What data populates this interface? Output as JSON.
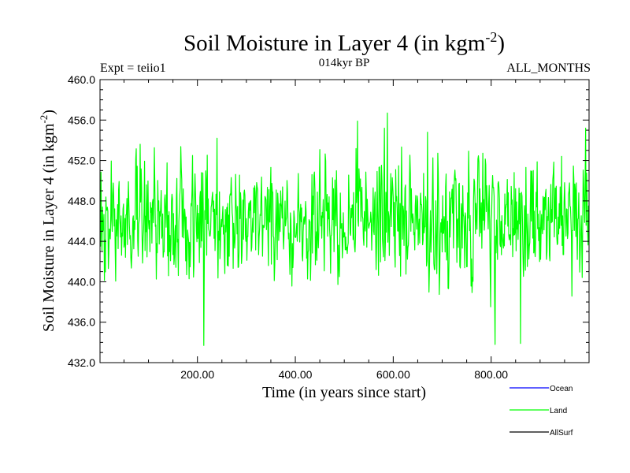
{
  "chart_data": {
    "type": "line",
    "title": "Soil Moisture in Layer 4 (in kgm",
    "title_superscript": "-2",
    "title_close": ")",
    "subtitle_left": "Expt = teiio1",
    "subtitle_center": "014kyr BP",
    "subtitle_right": "ALL_MONTHS",
    "xlabel": "Time (in years since start)",
    "ylabel": "Soil Moisture in Layer 4 (in kgm",
    "ylabel_superscript": "-2",
    "ylabel_close": ")",
    "xlim": [
      1,
      1000
    ],
    "ylim": [
      432.0,
      460.0
    ],
    "x_ticks": [
      200,
      400,
      600,
      800
    ],
    "x_tick_labels": [
      "200.00",
      "400.00",
      "600.00",
      "800.00"
    ],
    "y_ticks": [
      432,
      436,
      440,
      444,
      448,
      452,
      456,
      460
    ],
    "y_tick_labels": [
      "432.0",
      "436.0",
      "440.0",
      "444.0",
      "448.0",
      "452.0",
      "456.0",
      "460.0"
    ],
    "grid": false,
    "legend_position": "bottom-right",
    "series": [
      {
        "name": "Ocean",
        "color": "#0000ff",
        "values": []
      },
      {
        "name": "Land",
        "color": "#00ff00",
        "mean": 446.0,
        "min": 433.7,
        "max": 456.7,
        "n_points": 1000
      },
      {
        "name": "AllSurf",
        "color": "#000000",
        "values": []
      }
    ]
  }
}
